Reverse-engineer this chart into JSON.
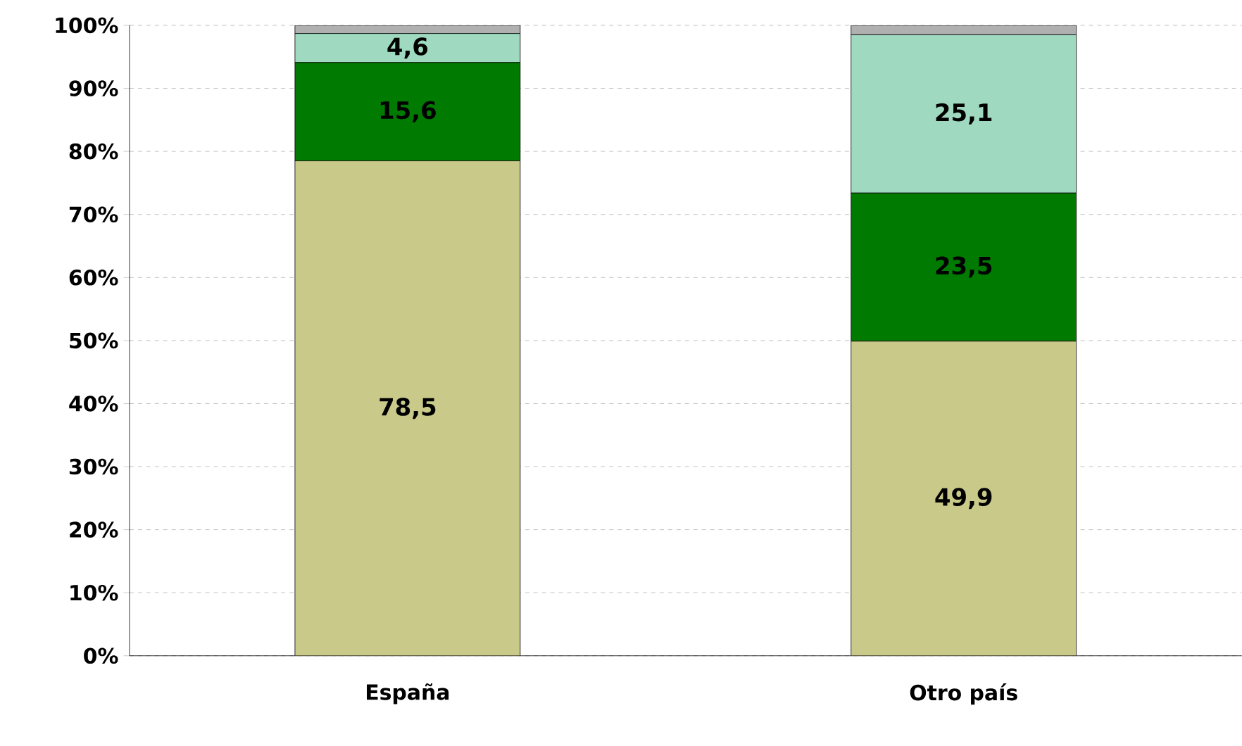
{
  "chart_data": {
    "type": "bar",
    "stacked": true,
    "categories": [
      "España",
      "Otro país"
    ],
    "series": [
      {
        "color": "#c9c98a",
        "values": [
          78.5,
          49.9
        ],
        "value_labels": [
          "78,5",
          "49,9"
        ]
      },
      {
        "color": "#007a00",
        "values": [
          15.6,
          23.5
        ],
        "value_labels": [
          "15,6",
          "23,5"
        ]
      },
      {
        "color": "#9fd9bf",
        "values": [
          4.6,
          25.1
        ],
        "value_labels": [
          "4,6",
          "25,1"
        ]
      },
      {
        "color": "#b0b0b0",
        "values": [
          1.3,
          1.5
        ],
        "value_labels": [
          null,
          null
        ]
      }
    ],
    "ylim": [
      0,
      100
    ],
    "yticks": [
      {
        "value": 0,
        "label": "0%"
      },
      {
        "value": 10,
        "label": "10%"
      },
      {
        "value": 20,
        "label": "20%"
      },
      {
        "value": 30,
        "label": "30%"
      },
      {
        "value": 40,
        "label": "40%"
      },
      {
        "value": 50,
        "label": "50%"
      },
      {
        "value": 60,
        "label": "60%"
      },
      {
        "value": 70,
        "label": "70%"
      },
      {
        "value": 80,
        "label": "80%"
      },
      {
        "value": 90,
        "label": "90%"
      },
      {
        "value": 100,
        "label": "100%"
      }
    ],
    "grid": "y"
  }
}
